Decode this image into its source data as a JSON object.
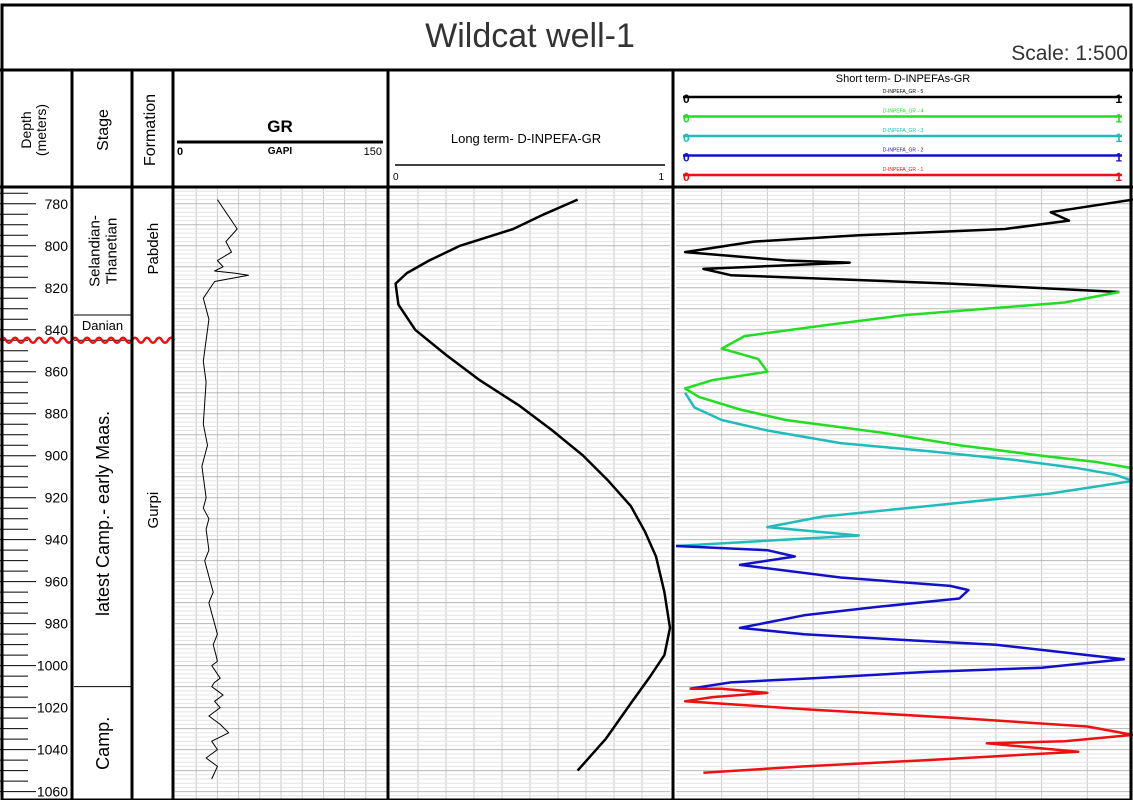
{
  "header": {
    "title": "Wildcat well-1",
    "scale": "Scale: 1:500"
  },
  "columns": {
    "depth": "Depth\n(meters)",
    "depth_line1": "Depth",
    "depth_line2": "(meters)",
    "stage": "Stage",
    "formation": "Formation"
  },
  "gr_track": {
    "title": "GR",
    "unit": "GAPI",
    "min_label": "0",
    "max_label": "150"
  },
  "long_track": {
    "title": "Long term- D-INPEFA-GR",
    "min_label": "0",
    "max_label": "1"
  },
  "short_track": {
    "title": "Short term- D-INPEFAs-GR",
    "curves": [
      {
        "name": "D-INPEFA_GR - 5",
        "color": "#000000",
        "min_label": "0",
        "max_label": "1"
      },
      {
        "name": "D-INPEFA_GR - 4",
        "color": "#22dd22",
        "min_label": "0",
        "max_label": "1"
      },
      {
        "name": "D-INPEFA_GR - 3",
        "color": "#22bbbb",
        "min_label": "0",
        "max_label": "1"
      },
      {
        "name": "D-INPEFA_GR - 2",
        "color": "#1111cc",
        "min_label": "0",
        "max_label": "1"
      },
      {
        "name": "D-INPEFA_GR - 1",
        "color": "#ee1111",
        "min_label": "0",
        "max_label": "1"
      }
    ]
  },
  "stages": [
    {
      "label": "Selandian-\nThanetian",
      "top": 772,
      "base": 833
    },
    {
      "label": "Danian",
      "top": 833,
      "base": 845
    },
    {
      "label": "latest Camp.- early Maas.",
      "top": 845,
      "base": 1010
    },
    {
      "label": "Camp.",
      "top": 1010,
      "base": 1064
    }
  ],
  "formations": [
    {
      "label": "Pabdeh",
      "top": 772,
      "base": 845
    },
    {
      "label": "Gurpi",
      "top": 845,
      "base": 1064
    }
  ],
  "unconformity_depth": 845,
  "unconformity_color": "#ee1111",
  "chart_data": {
    "type": "line",
    "ylabel": "Depth\n(meters)",
    "y_ticks": [
      780,
      800,
      820,
      840,
      860,
      880,
      900,
      920,
      940,
      960,
      980,
      1000,
      1020,
      1040,
      1060
    ],
    "y_range": [
      772,
      1064
    ],
    "y_inverted": true,
    "series": [
      {
        "name": "GR",
        "track": "gr",
        "xlim": [
          0,
          150
        ],
        "color": "#000000",
        "x": [
          30,
          38,
          44,
          36,
          40,
          30,
          34,
          28,
          42,
          52,
          28,
          20,
          24,
          22,
          20,
          22,
          21,
          20,
          23,
          19,
          21,
          22,
          20,
          24,
          22,
          23,
          24,
          21,
          23,
          25,
          27,
          24,
          26,
          28,
          30,
          27,
          29,
          30,
          26,
          28,
          30,
          32,
          28,
          26,
          30,
          34,
          28,
          32,
          24,
          32,
          38,
          26,
          30,
          22,
          30,
          26
        ],
        "y": [
          778,
          786,
          792,
          798,
          803,
          807,
          810,
          812,
          813,
          814,
          817,
          825,
          835,
          845,
          855,
          865,
          875,
          885,
          895,
          905,
          915,
          920,
          925,
          930,
          935,
          940,
          945,
          950,
          955,
          960,
          965,
          970,
          975,
          980,
          985,
          990,
          995,
          998,
          1000,
          1002,
          1004,
          1006,
          1008,
          1010,
          1012,
          1014,
          1017,
          1020,
          1024,
          1028,
          1032,
          1036,
          1040,
          1044,
          1048,
          1054
        ]
      },
      {
        "name": "Long term- D-INPEFA-GR",
        "track": "long",
        "xlim": [
          0,
          1
        ],
        "color": "#000000",
        "x": [
          0.67,
          0.55,
          0.44,
          0.25,
          0.14,
          0.06,
          0.02,
          0.03,
          0.09,
          0.2,
          0.32,
          0.46,
          0.58,
          0.69,
          0.78,
          0.86,
          0.91,
          0.95,
          0.98,
          1.0,
          0.98,
          0.93,
          0.86,
          0.77,
          0.67
        ],
        "y": [
          778,
          785,
          792,
          800,
          807,
          813,
          818,
          828,
          840,
          852,
          864,
          876,
          888,
          900,
          912,
          924,
          936,
          948,
          965,
          982,
          995,
          1005,
          1018,
          1035,
          1050
        ]
      },
      {
        "name": "D-INPEFA_GR - 5",
        "track": "short",
        "xlim": [
          0,
          1
        ],
        "color": "#000000",
        "x": [
          1.0,
          0.82,
          0.86,
          0.72,
          0.4,
          0.17,
          0.02,
          0.24,
          0.38,
          0.06,
          0.12,
          0.6,
          0.97
        ],
        "y": [
          778,
          784,
          788,
          792,
          795,
          798,
          803,
          807,
          808,
          811,
          814,
          818,
          822
        ]
      },
      {
        "name": "D-INPEFA_GR - 4",
        "track": "short",
        "xlim": [
          0,
          1
        ],
        "color": "#22dd22",
        "x": [
          0.97,
          0.85,
          0.5,
          0.32,
          0.15,
          0.1,
          0.18,
          0.2,
          0.08,
          0.02,
          0.05,
          0.14,
          0.24,
          0.45,
          0.62,
          0.8,
          0.92,
          1.0
        ],
        "y": [
          822,
          827,
          833,
          838,
          843,
          849,
          854,
          860,
          864,
          868,
          872,
          878,
          883,
          889,
          895,
          900,
          903,
          906
        ]
      },
      {
        "name": "D-INPEFA_GR - 3",
        "track": "short",
        "xlim": [
          0,
          1
        ],
        "color": "#22bbbb",
        "x": [
          0.02,
          0.04,
          0.1,
          0.2,
          0.36,
          0.56,
          0.74,
          0.88,
          0.96,
          1.0,
          0.82,
          0.55,
          0.32,
          0.2,
          0.4,
          0.0
        ],
        "y": [
          870,
          877,
          883,
          888,
          894,
          898,
          902,
          906,
          909,
          912,
          918,
          924,
          929,
          934,
          938,
          943
        ]
      },
      {
        "name": "D-INPEFA_GR - 2",
        "track": "short",
        "xlim": [
          0,
          1
        ],
        "color": "#1111cc",
        "x": [
          0.0,
          0.2,
          0.26,
          0.14,
          0.36,
          0.6,
          0.64,
          0.62,
          0.44,
          0.28,
          0.14,
          0.28,
          0.52,
          0.7,
          0.86,
          0.98,
          0.8,
          0.55,
          0.3,
          0.12,
          0.03
        ],
        "y": [
          943,
          945,
          948,
          952,
          958,
          962,
          964,
          968,
          972,
          976,
          982,
          985,
          988,
          990,
          994,
          997,
          1001,
          1003,
          1006,
          1008,
          1011
        ]
      },
      {
        "name": "D-INPEFA_GR - 1",
        "track": "short",
        "xlim": [
          0,
          1
        ],
        "color": "#ee1111",
        "x": [
          0.03,
          0.1,
          0.2,
          0.08,
          0.02,
          0.3,
          0.62,
          0.9,
          1.0,
          0.85,
          0.68,
          0.88,
          0.55,
          0.28,
          0.06
        ],
        "y": [
          1011,
          1011,
          1013,
          1015,
          1017,
          1021,
          1025,
          1029,
          1033,
          1036,
          1037,
          1041,
          1045,
          1048,
          1051
        ]
      }
    ]
  }
}
